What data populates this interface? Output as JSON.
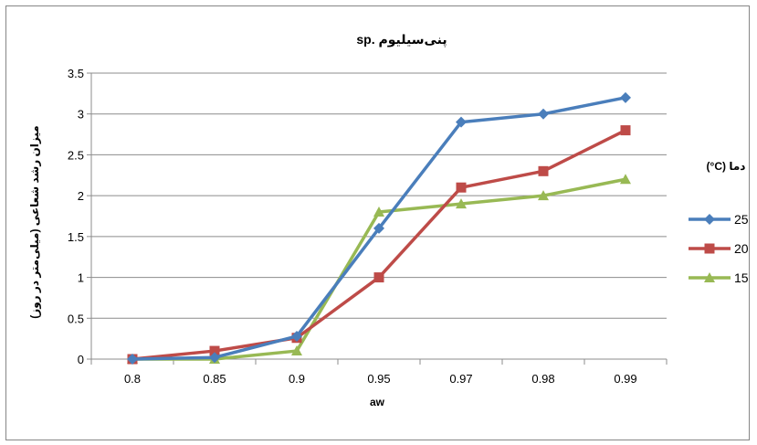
{
  "chart_data": {
    "type": "line",
    "title": "پنی‌سیلیوم .sp",
    "xlabel": "aw",
    "ylabel": "میزان رشد شعاعی (میلی‌متر در روز)",
    "categories": [
      "0.8",
      "0.85",
      "0.9",
      "0.95",
      "0.97",
      "0.98",
      "0.99"
    ],
    "y_ticks": [
      "0",
      "0.5",
      "1",
      "1.5",
      "2",
      "2.5",
      "3",
      "3.5"
    ],
    "ylim": [
      0,
      3.5
    ],
    "grid": "horizontal",
    "legend_title": "دما (C°)",
    "legend_position": "right",
    "series": [
      {
        "name": "25",
        "marker": "diamond",
        "color": "#4a7ebb",
        "values": [
          0,
          0.02,
          0.28,
          1.6,
          2.9,
          3.0,
          3.2
        ]
      },
      {
        "name": "20",
        "marker": "square",
        "color": "#be4b48",
        "values": [
          0,
          0.1,
          0.26,
          1.0,
          2.1,
          2.3,
          2.8
        ]
      },
      {
        "name": "15",
        "marker": "triangle",
        "color": "#98b954",
        "values": [
          0,
          0,
          0.1,
          1.8,
          1.9,
          2.0,
          2.2
        ]
      }
    ]
  }
}
